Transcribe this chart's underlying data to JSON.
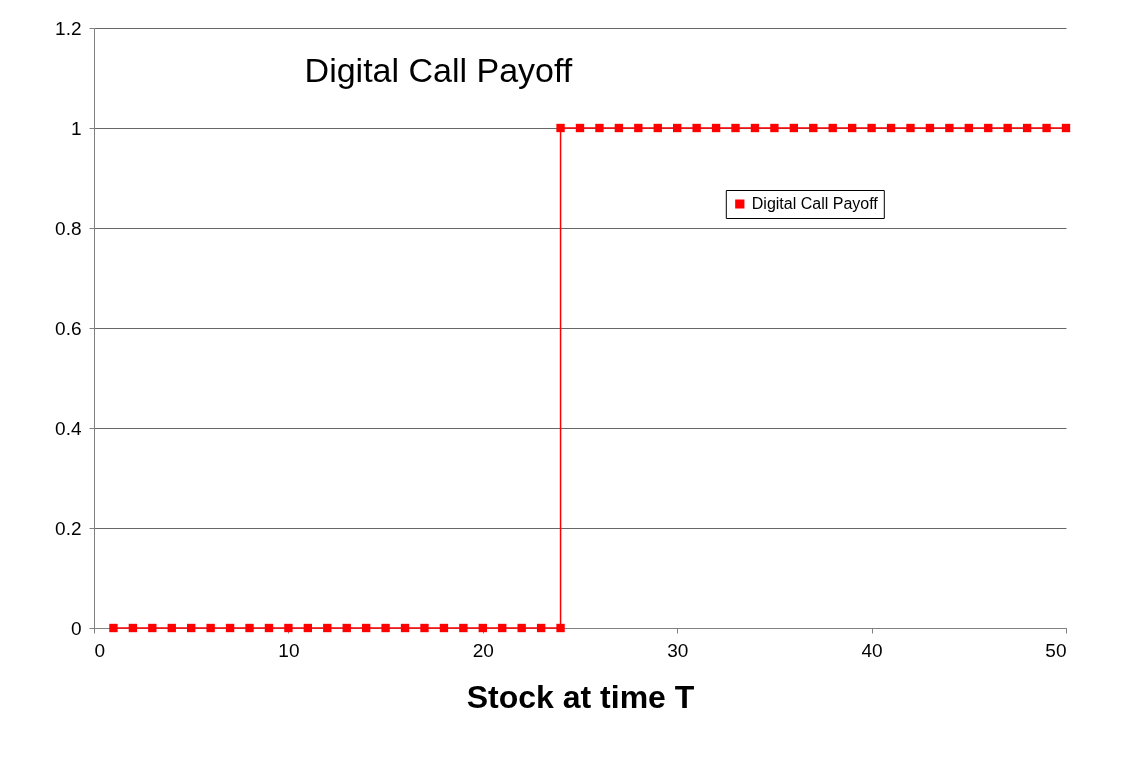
{
  "chart_data": {
    "type": "line",
    "title": "Digital Call Payoff",
    "xlabel": "Stock at time T",
    "series": [
      {
        "name": "Digital Call Payoff",
        "color": "#ff0000",
        "x": [
          1,
          2,
          3,
          4,
          5,
          6,
          7,
          8,
          9,
          10,
          11,
          12,
          13,
          14,
          15,
          16,
          17,
          18,
          19,
          20,
          21,
          22,
          23,
          24,
          24,
          25,
          26,
          27,
          28,
          29,
          30,
          31,
          32,
          33,
          34,
          35,
          36,
          37,
          38,
          39,
          40,
          41,
          42,
          43,
          44,
          45,
          46,
          47,
          48,
          49,
          50
        ],
        "values": [
          0,
          0,
          0,
          0,
          0,
          0,
          0,
          0,
          0,
          0,
          0,
          0,
          0,
          0,
          0,
          0,
          0,
          0,
          0,
          0,
          0,
          0,
          0,
          0,
          1,
          1,
          1,
          1,
          1,
          1,
          1,
          1,
          1,
          1,
          1,
          1,
          1,
          1,
          1,
          1,
          1,
          1,
          1,
          1,
          1,
          1,
          1,
          1,
          1,
          1,
          1
        ]
      }
    ],
    "xlim": [
      0,
      50
    ],
    "xticks": [
      0,
      10,
      20,
      30,
      40,
      50
    ],
    "ylim": [
      0,
      1.2
    ],
    "yticks": [
      0,
      0.2,
      0.4,
      0.6,
      0.8,
      1,
      1.2
    ],
    "grid": "y",
    "legend": "right",
    "marker": "square",
    "line_style": "solid"
  }
}
